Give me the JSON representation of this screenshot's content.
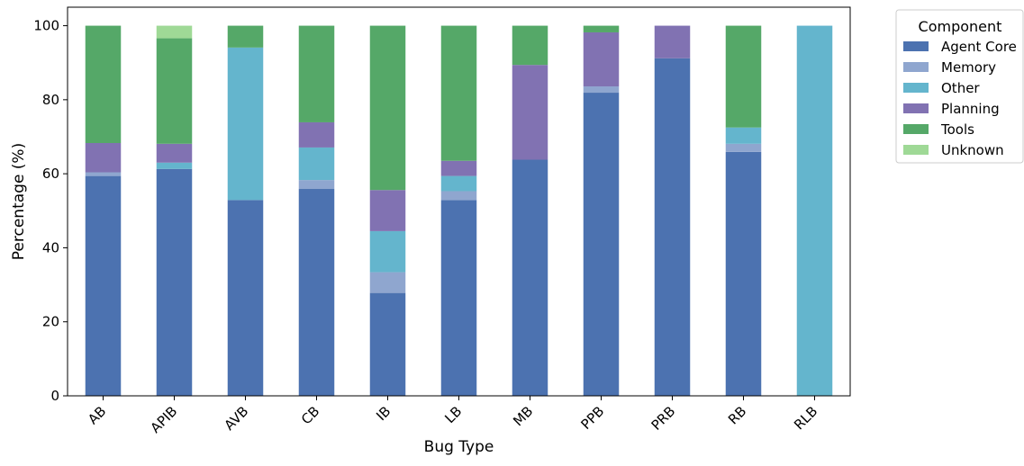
{
  "chart_data": {
    "type": "bar",
    "stacked": true,
    "title": "",
    "xlabel": "Bug Type",
    "ylabel": "Percentage (%)",
    "ylim": [
      0,
      105
    ],
    "yticks": [
      0,
      20,
      40,
      60,
      80,
      100
    ],
    "grid": false,
    "categories": [
      "AB",
      "APIB",
      "AVB",
      "CB",
      "IB",
      "LB",
      "MB",
      "PPB",
      "PRB",
      "RB",
      "RLB"
    ],
    "legend": {
      "title": "Component",
      "placement": "outside-top-right"
    },
    "series": [
      {
        "name": "Agent Core",
        "color": "#4c72b0",
        "values": [
          59.4,
          61.3,
          52.9,
          55.9,
          27.8,
          52.9,
          63.8,
          81.9,
          91.2,
          65.9,
          0
        ]
      },
      {
        "name": "Memory",
        "color": "#8fa6cf",
        "values": [
          1.0,
          0,
          0,
          2.4,
          5.6,
          2.4,
          0,
          1.7,
          0,
          2.2,
          0
        ]
      },
      {
        "name": "Other",
        "color": "#64b5cd",
        "values": [
          0,
          1.7,
          41.2,
          8.8,
          11.1,
          4.1,
          0,
          0,
          0,
          4.4,
          100
        ]
      },
      {
        "name": "Planning",
        "color": "#8172b2",
        "values": [
          7.9,
          5.1,
          0,
          6.8,
          11.1,
          4.1,
          25.6,
          14.6,
          8.8,
          0,
          0
        ]
      },
      {
        "name": "Tools",
        "color": "#55a868",
        "values": [
          31.7,
          28.5,
          5.9,
          26.1,
          44.4,
          36.5,
          10.6,
          1.8,
          0,
          27.5,
          0
        ]
      },
      {
        "name": "Unknown",
        "color": "#9fd996",
        "values": [
          0,
          3.4,
          0,
          0,
          0,
          0,
          0,
          0,
          0,
          0,
          0
        ]
      }
    ]
  }
}
